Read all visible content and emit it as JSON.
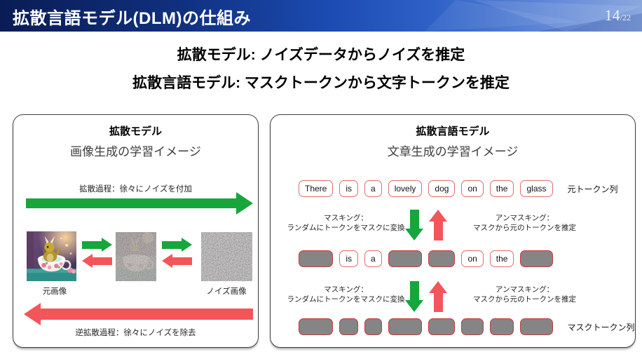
{
  "header": {
    "title": "拡散言語モデル(DLM)の仕組み",
    "page_current": "14",
    "page_total": "/22"
  },
  "subtitle": {
    "line1": "拡散モデル: ノイズデータからノイズを推定",
    "line2": "拡散言語モデル: マスクトークンから文字トークンを推定"
  },
  "left_panel": {
    "title": "拡散モデル",
    "subtitle": "画像生成の学習イメージ",
    "forward_label": "拡散過程：徐々にノイズを付加",
    "reverse_label": "逆拡散過程：徐々にノイズを除去",
    "original_image_label": "元画像",
    "noise_image_label": "ノイズ画像"
  },
  "right_panel": {
    "title": "拡散言語モデル",
    "subtitle": "文章生成の学習イメージ",
    "tokens": [
      "There",
      "is",
      "a",
      "lovely",
      "dog",
      "on",
      "the",
      "glass"
    ],
    "row2_mask": [
      true,
      false,
      false,
      true,
      true,
      false,
      false,
      true
    ],
    "original_tokens_label": "元トークン列",
    "masked_tokens_label": "マスクトークン列",
    "masking_line1": "マスキング：",
    "masking_line2": "ランダムにトークンをマスクに変換",
    "unmasking_line1": "アンマスキング：",
    "unmasking_line2": "マスクから元のトークンを推定"
  },
  "colors": {
    "forward_arrow": "#17a53c",
    "reverse_arrow": "#f4555a",
    "token_border": "#e06e6e",
    "masked_fill": "#858585",
    "masked_border": "#c13b3b",
    "header_left": "#0a1c55",
    "header_right": "#8aa7de"
  }
}
